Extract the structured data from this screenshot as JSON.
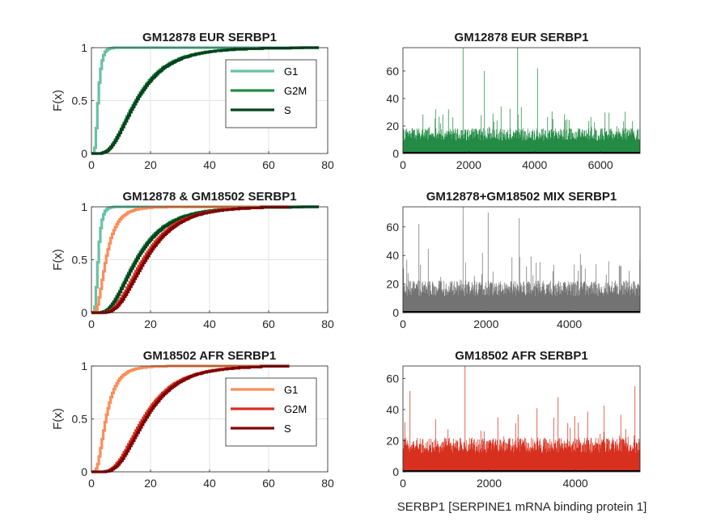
{
  "figure": {
    "xlabel_bottom": "SERBP1 [SERPINE1 mRNA binding protein 1]"
  },
  "chart_data": [
    {
      "id": "cdf-eur",
      "type": "line",
      "title": "GM12878 EUR SERBP1",
      "xlabel": "",
      "ylabel": "F(x)",
      "xlim": [
        0,
        80
      ],
      "ylim": [
        0,
        1
      ],
      "xticks": [
        0,
        20,
        40,
        60,
        80
      ],
      "yticks": [
        0,
        0.5,
        1
      ],
      "grid": true,
      "legend": "inside-upper-right",
      "series": [
        {
          "name": "G1",
          "color": "#66c2a4",
          "params": {
            "m": 0.72,
            "s": 0.45
          },
          "xmax": 77
        },
        {
          "name": "G2M",
          "color": "#238b45",
          "params": {
            "m": 2.7,
            "s": 0.55
          },
          "xmax": 77
        },
        {
          "name": "S",
          "color": "#00441b",
          "params": {
            "m": 2.72,
            "s": 0.55
          },
          "xmax": 77
        }
      ]
    },
    {
      "id": "hist-eur",
      "type": "bar",
      "title": "GM12878 EUR SERBP1",
      "xlim": [
        0,
        7200
      ],
      "ylim": [
        0,
        77
      ],
      "xticks": [
        0,
        2000,
        4000,
        6000
      ],
      "yticks": [
        0,
        20,
        40,
        60
      ],
      "color": "#238b45",
      "n": 7200,
      "base": 14,
      "spread": 9,
      "peaks": [
        [
          1830,
          77
        ],
        [
          3480,
          77
        ],
        [
          4080,
          62
        ],
        [
          2480,
          60
        ]
      ]
    },
    {
      "id": "cdf-mix",
      "type": "line",
      "title": "GM12878 & GM18502 SERBP1",
      "xlabel": "",
      "ylabel": "F(x)",
      "xlim": [
        0,
        80
      ],
      "ylim": [
        0,
        1
      ],
      "xticks": [
        0,
        20,
        40,
        60,
        80
      ],
      "yticks": [
        0,
        0.5,
        1
      ],
      "grid": true,
      "series": [
        {
          "name": "G1",
          "color": "#66c2a4",
          "params": {
            "m": 0.72,
            "s": 0.45
          },
          "xmax": 77
        },
        {
          "name": "G2M",
          "color": "#238b45",
          "params": {
            "m": 2.7,
            "s": 0.55
          },
          "xmax": 77
        },
        {
          "name": "S",
          "color": "#00441b",
          "params": {
            "m": 2.72,
            "s": 0.55
          },
          "xmax": 77
        },
        {
          "name": "G1",
          "color": "#fc8d59",
          "params": {
            "m": 1.55,
            "s": 0.6
          },
          "xmax": 67
        },
        {
          "name": "G2M",
          "color": "#d7301f",
          "params": {
            "m": 2.85,
            "s": 0.5
          },
          "xmax": 67
        },
        {
          "name": "S",
          "color": "#7f0000",
          "params": {
            "m": 2.9,
            "s": 0.48
          },
          "xmax": 67
        }
      ]
    },
    {
      "id": "hist-mix",
      "type": "bar",
      "title": "GM12878+GM18502 MIX SERBP1",
      "xlim": [
        0,
        5700
      ],
      "ylim": [
        0,
        74
      ],
      "xticks": [
        0,
        2000,
        4000
      ],
      "yticks": [
        0,
        20,
        40,
        60
      ],
      "color": "#737373",
      "n": 5700,
      "base": 17,
      "spread": 11,
      "peaks": [
        [
          1440,
          74
        ],
        [
          2050,
          70
        ],
        [
          2800,
          66
        ],
        [
          380,
          62
        ]
      ]
    },
    {
      "id": "cdf-afr",
      "type": "line",
      "title": "GM18502 AFR SERBP1",
      "xlabel": "",
      "ylabel": "F(x)",
      "xlim": [
        0,
        80
      ],
      "ylim": [
        0,
        1
      ],
      "xticks": [
        0,
        20,
        40,
        60,
        80
      ],
      "yticks": [
        0,
        0.5,
        1
      ],
      "grid": true,
      "legend": "inside-upper-right",
      "series": [
        {
          "name": "G1",
          "color": "#fc8d59",
          "params": {
            "m": 1.55,
            "s": 0.6
          },
          "xmax": 67
        },
        {
          "name": "G2M",
          "color": "#d7301f",
          "params": {
            "m": 2.85,
            "s": 0.5
          },
          "xmax": 67
        },
        {
          "name": "S",
          "color": "#7f0000",
          "params": {
            "m": 2.9,
            "s": 0.48
          },
          "xmax": 67
        }
      ]
    },
    {
      "id": "hist-afr",
      "type": "bar",
      "title": "GM18502 AFR SERBP1",
      "xlim": [
        0,
        5500
      ],
      "ylim": [
        0,
        68
      ],
      "xticks": [
        0,
        2000,
        4000
      ],
      "yticks": [
        0,
        20,
        40,
        60
      ],
      "color": "#d7301f",
      "n": 5500,
      "base": 17,
      "spread": 10,
      "peaks": [
        [
          1440,
          68
        ],
        [
          5380,
          55
        ],
        [
          160,
          52
        ],
        [
          3600,
          48
        ]
      ]
    }
  ]
}
